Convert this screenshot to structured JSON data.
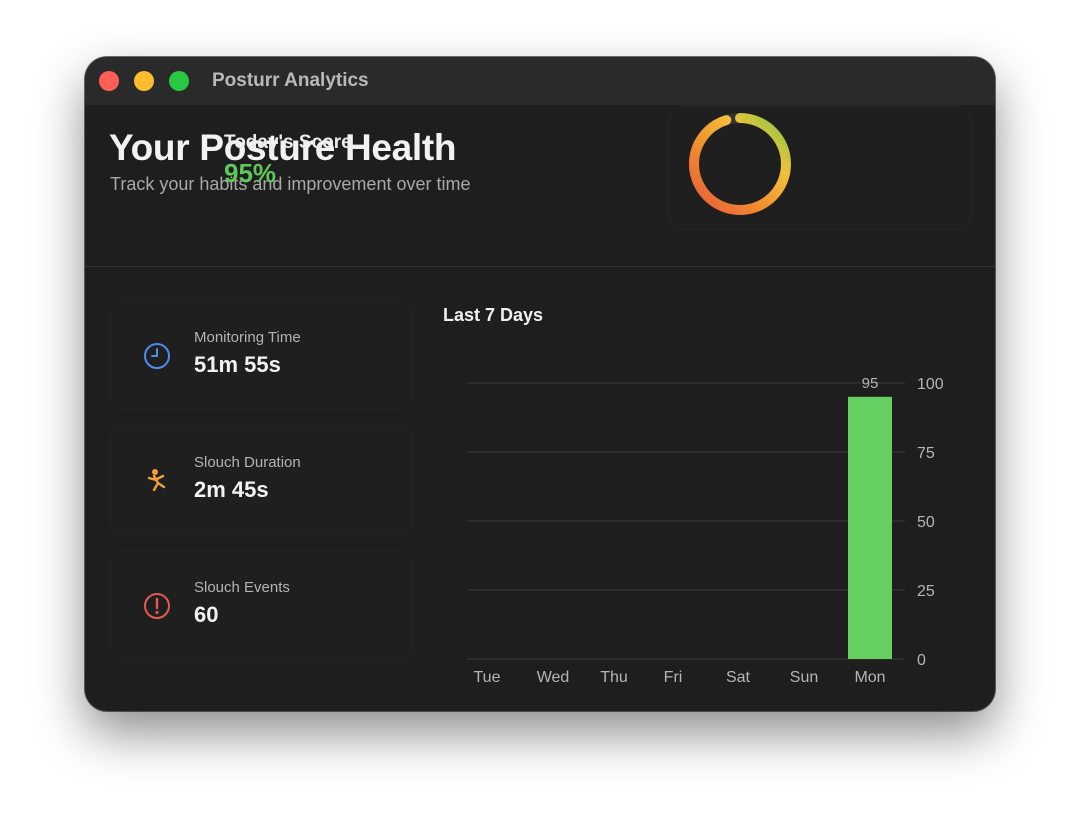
{
  "window": {
    "title": "Posturr Analytics"
  },
  "header": {
    "title": "Your Posture Health",
    "subtitle": "Track your habits and improvement over time"
  },
  "score": {
    "label": "Today's Score",
    "value": "95%",
    "percent": 95,
    "value_color": "#5fc85a"
  },
  "stats": [
    {
      "label": "Monitoring Time",
      "value": "51m 55s",
      "icon": "clock-icon",
      "color": "#4a8ff0"
    },
    {
      "label": "Slouch Duration",
      "value": "2m 45s",
      "icon": "slouch-figure-icon",
      "color": "#f0a037"
    },
    {
      "label": "Slouch Events",
      "value": "60",
      "icon": "alert-icon",
      "color": "#e35a4f"
    }
  ],
  "chart_data": {
    "type": "bar",
    "title": "Last 7 Days",
    "categories": [
      "Tue",
      "Wed",
      "Thu",
      "Fri",
      "Sat",
      "Sun",
      "Mon"
    ],
    "values": [
      null,
      null,
      null,
      null,
      null,
      null,
      95
    ],
    "data_labels": [
      "",
      "",
      "",
      "",
      "",
      "",
      "95"
    ],
    "ylim": [
      0,
      100
    ],
    "yticks": [
      0,
      25,
      50,
      75,
      100
    ],
    "y_axis_side": "right",
    "grid": true,
    "bar_color": "#65d060"
  }
}
